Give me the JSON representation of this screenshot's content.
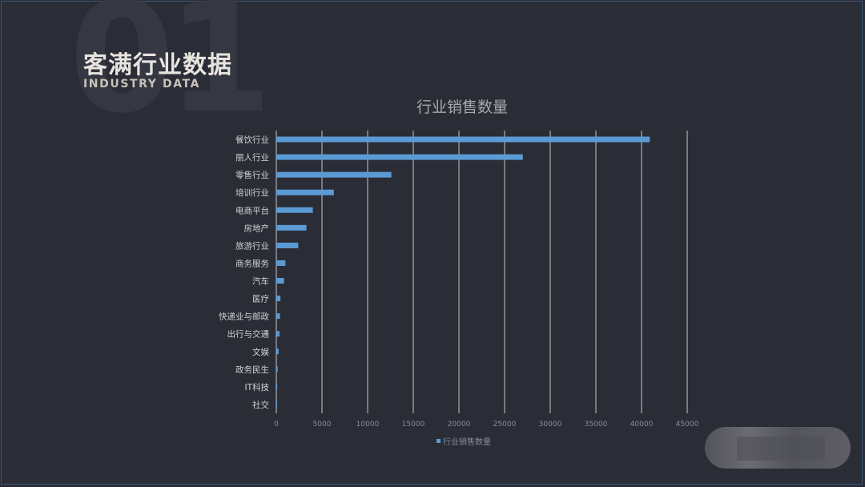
{
  "header": {
    "big_number": "01",
    "title": "客满行业数据",
    "subtitle": "INDUSTRY DATA"
  },
  "colors": {
    "bar": "#5b9bd5",
    "grid": "#c8c8c8",
    "tick_text": "#8a8d96",
    "category_text": "#d4d4d4",
    "title_text": "#a8a8ae"
  },
  "chart_data": {
    "type": "bar",
    "orientation": "horizontal",
    "title": "行业销售数量",
    "xlabel": "",
    "ylabel": "",
    "xlim": [
      0,
      45000
    ],
    "x_ticks": [
      0,
      5000,
      10000,
      15000,
      20000,
      25000,
      30000,
      35000,
      40000,
      45000
    ],
    "grid": true,
    "legend_position": "bottom",
    "categories": [
      "餐饮行业",
      "丽人行业",
      "零售行业",
      "培训行业",
      "电商平台",
      "房地产",
      "旅游行业",
      "商务服务",
      "汽车",
      "医疗",
      "快递业与邮政",
      "出行与交通",
      "文娱",
      "政务民生",
      "IT科技",
      "社交"
    ],
    "series": [
      {
        "name": "行业销售数量",
        "values": [
          40900,
          27000,
          12600,
          6300,
          4000,
          3300,
          2400,
          1000,
          850,
          450,
          400,
          350,
          250,
          150,
          100,
          80
        ]
      }
    ]
  }
}
